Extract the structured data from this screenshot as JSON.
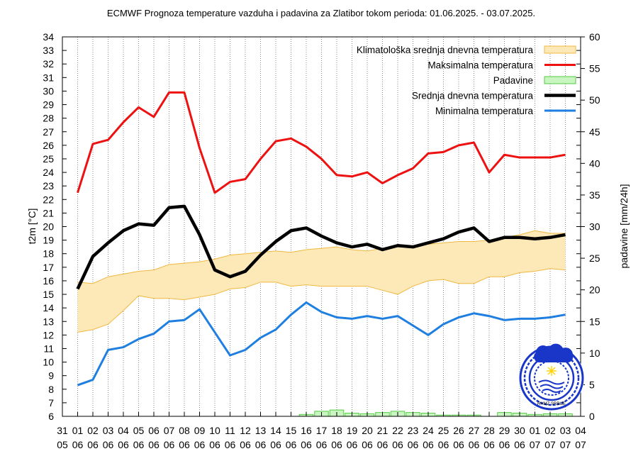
{
  "chart_data": {
    "type": "line",
    "title": "ECMWF Prognoza temperature vazduha i padavina za Zlatibor tokom perioda: 01.06.2025. - 03.07.2025.",
    "ylabel": "t2m [°C]",
    "y2label": "padavine [mm/24h]",
    "ylim": [
      6,
      34
    ],
    "y2lim": [
      0,
      60
    ],
    "yticks": [
      6,
      7,
      8,
      9,
      10,
      11,
      12,
      13,
      14,
      15,
      16,
      17,
      18,
      19,
      20,
      21,
      22,
      23,
      24,
      25,
      26,
      27,
      28,
      29,
      30,
      31,
      32,
      33,
      34
    ],
    "y2ticks": [
      0,
      5,
      10,
      15,
      20,
      25,
      30,
      35,
      40,
      45,
      50,
      55,
      60
    ],
    "x_day_labels": [
      "31",
      "01",
      "02",
      "03",
      "04",
      "05",
      "06",
      "07",
      "08",
      "09",
      "10",
      "11",
      "12",
      "13",
      "14",
      "15",
      "16",
      "17",
      "18",
      "19",
      "20",
      "21",
      "22",
      "23",
      "24",
      "25",
      "26",
      "27",
      "28",
      "29",
      "30",
      "01",
      "02",
      "03",
      "04"
    ],
    "x_month_labels": [
      "05",
      "06",
      "06",
      "06",
      "06",
      "06",
      "06",
      "06",
      "06",
      "06",
      "06",
      "06",
      "06",
      "06",
      "06",
      "06",
      "06",
      "06",
      "06",
      "06",
      "06",
      "06",
      "06",
      "06",
      "06",
      "06",
      "06",
      "06",
      "06",
      "06",
      "06",
      "07",
      "07",
      "07",
      "07"
    ],
    "legend": [
      {
        "label": "Klimatološka srednja dnevna temperatura",
        "color": "#fde8b8",
        "kind": "band"
      },
      {
        "label": "Maksimalna temperatura",
        "color": "#ee1111",
        "kind": "line"
      },
      {
        "label": "Padavine",
        "color": "#66dd55",
        "kind": "box"
      },
      {
        "label": "Srednja dnevna temperatura",
        "color": "#000000",
        "kind": "line"
      },
      {
        "label": "Minimalna temperatura",
        "color": "#1e7fe0",
        "kind": "line"
      }
    ],
    "series": [
      {
        "name": "Maksimalna temperatura",
        "color": "#ee1111",
        "values": [
          22.5,
          26.1,
          26.4,
          27.7,
          28.8,
          28.1,
          29.9,
          29.9,
          25.8,
          22.5,
          23.3,
          23.5,
          25.0,
          26.3,
          26.5,
          25.9,
          25.0,
          23.8,
          23.7,
          24.0,
          23.2,
          23.8,
          24.3,
          25.4,
          25.5,
          26.0,
          26.2,
          24.0,
          25.3,
          25.1,
          25.1,
          25.1,
          25.3
        ]
      },
      {
        "name": "Srednja dnevna temperatura",
        "color": "#000000",
        "values": [
          15.4,
          17.8,
          18.8,
          19.7,
          20.2,
          20.1,
          21.4,
          21.5,
          19.4,
          16.8,
          16.3,
          16.7,
          17.9,
          18.9,
          19.7,
          19.9,
          19.3,
          18.8,
          18.5,
          18.7,
          18.3,
          18.6,
          18.5,
          18.8,
          19.1,
          19.6,
          19.9,
          18.9,
          19.2,
          19.2,
          19.1,
          19.2,
          19.4
        ]
      },
      {
        "name": "Minimalna temperatura",
        "color": "#1e7fe0",
        "values": [
          8.3,
          8.7,
          10.9,
          11.1,
          11.7,
          12.1,
          13.0,
          13.1,
          13.9,
          12.2,
          10.5,
          10.9,
          11.8,
          12.4,
          13.5,
          14.4,
          13.7,
          13.3,
          13.2,
          13.4,
          13.2,
          13.4,
          12.7,
          12.0,
          12.8,
          13.3,
          13.6,
          13.4,
          13.1,
          13.2,
          13.2,
          13.3,
          13.5
        ]
      },
      {
        "name": "Klimatološka srednja dnevna temperatura - gornja granica",
        "color": "#f0b840",
        "values": [
          15.9,
          15.8,
          16.3,
          16.5,
          16.7,
          16.8,
          17.2,
          17.3,
          17.4,
          17.6,
          17.9,
          18.0,
          18.1,
          18.2,
          18.1,
          18.3,
          18.4,
          18.5,
          18.3,
          18.2,
          18.4,
          18.5,
          18.6,
          18.7,
          18.8,
          18.9,
          18.9,
          19.0,
          19.2,
          19.4,
          19.7,
          19.5,
          19.5
        ]
      },
      {
        "name": "Klimatološka srednja dnevna temperatura - donja granica",
        "color": "#f0b840",
        "values": [
          12.2,
          12.4,
          12.8,
          13.8,
          14.9,
          14.7,
          14.7,
          14.6,
          14.8,
          15.0,
          15.4,
          15.5,
          15.9,
          15.9,
          15.6,
          15.7,
          15.6,
          15.6,
          15.6,
          15.6,
          15.3,
          15.0,
          15.6,
          16.0,
          16.1,
          15.8,
          15.8,
          16.3,
          16.3,
          16.6,
          16.7,
          16.9,
          16.8
        ]
      },
      {
        "name": "Padavine",
        "color": "#66dd55",
        "values": [
          0,
          0,
          0,
          0,
          0,
          0,
          0,
          0,
          0,
          0,
          0,
          0,
          0,
          0,
          0,
          0.3,
          0.8,
          1.0,
          0.5,
          0.4,
          0.6,
          0.8,
          0.6,
          0.5,
          0.2,
          0.2,
          0.2,
          0,
          0.6,
          0.5,
          0.3,
          0.4,
          0.4
        ]
      }
    ]
  }
}
